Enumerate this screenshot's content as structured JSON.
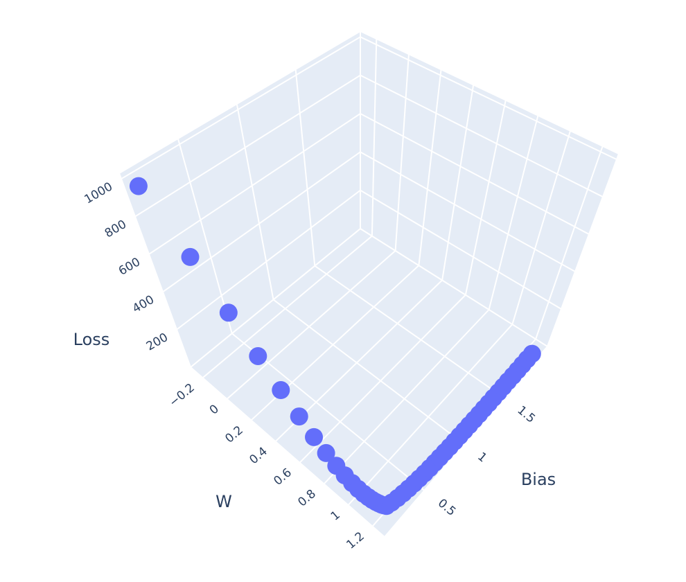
{
  "chart_data": {
    "type": "scatter3d",
    "x_label": "W",
    "y_label": "Bias",
    "z_label": "Loss",
    "color": "#636efa",
    "x": [
      -0.2,
      0.018,
      0.202,
      0.36,
      0.493,
      0.607,
      0.703,
      0.785,
      0.855,
      0.914,
      0.965,
      1.007,
      1.044,
      1.075,
      1.101,
      1.123,
      1.142,
      1.159,
      1.172,
      1.184,
      1.194,
      1.203,
      1.21,
      1.216,
      1.221,
      1.225,
      1.229,
      1.232,
      1.234,
      1.236,
      1.238,
      1.24,
      1.241,
      1.242,
      1.243,
      1.244,
      1.245,
      1.246,
      1.246,
      1.247,
      1.247,
      1.248,
      1.248,
      1.248,
      1.249,
      1.249,
      1.249,
      1.249,
      1.25
    ],
    "y": [
      0.01,
      0.02,
      0.03,
      0.04,
      0.05,
      0.06,
      0.07,
      0.08,
      0.09,
      0.1,
      0.11,
      0.12,
      0.13,
      0.14,
      0.15,
      0.16,
      0.17,
      0.18,
      0.19,
      0.2,
      0.25,
      0.31,
      0.37,
      0.43,
      0.49,
      0.55,
      0.61,
      0.67,
      0.73,
      0.79,
      0.85,
      0.91,
      0.97,
      1.03,
      1.09,
      1.15,
      1.21,
      1.27,
      1.33,
      1.39,
      1.45,
      1.51,
      1.57,
      1.63,
      1.69,
      1.75,
      1.81,
      1.87,
      1.93
    ],
    "z": [
      999,
      722,
      521,
      377,
      272,
      197,
      142,
      103,
      74,
      54,
      39,
      28,
      20,
      15,
      11,
      8,
      6,
      4,
      3,
      2,
      1.5,
      1.1,
      0.8,
      0.6,
      0.4,
      0.3,
      0.2,
      0.2,
      0.1,
      0.1,
      0.1,
      0.1,
      0.1,
      0,
      0,
      0,
      0,
      0,
      0,
      0,
      0,
      0,
      0,
      0,
      0,
      0,
      0,
      0,
      0
    ],
    "xlim": [
      -0.3,
      1.3
    ],
    "ylim": [
      0,
      2.05
    ],
    "zlim": [
      0,
      1030
    ],
    "xticks": [
      {
        "value": -0.2,
        "label": "−0.2"
      },
      0,
      0.2,
      0.4,
      0.6,
      0.8,
      1,
      1.2
    ],
    "yticks": [
      0.5,
      1,
      1.5
    ],
    "zticks": [
      200,
      400,
      600,
      800,
      1000
    ],
    "grid": true
  }
}
